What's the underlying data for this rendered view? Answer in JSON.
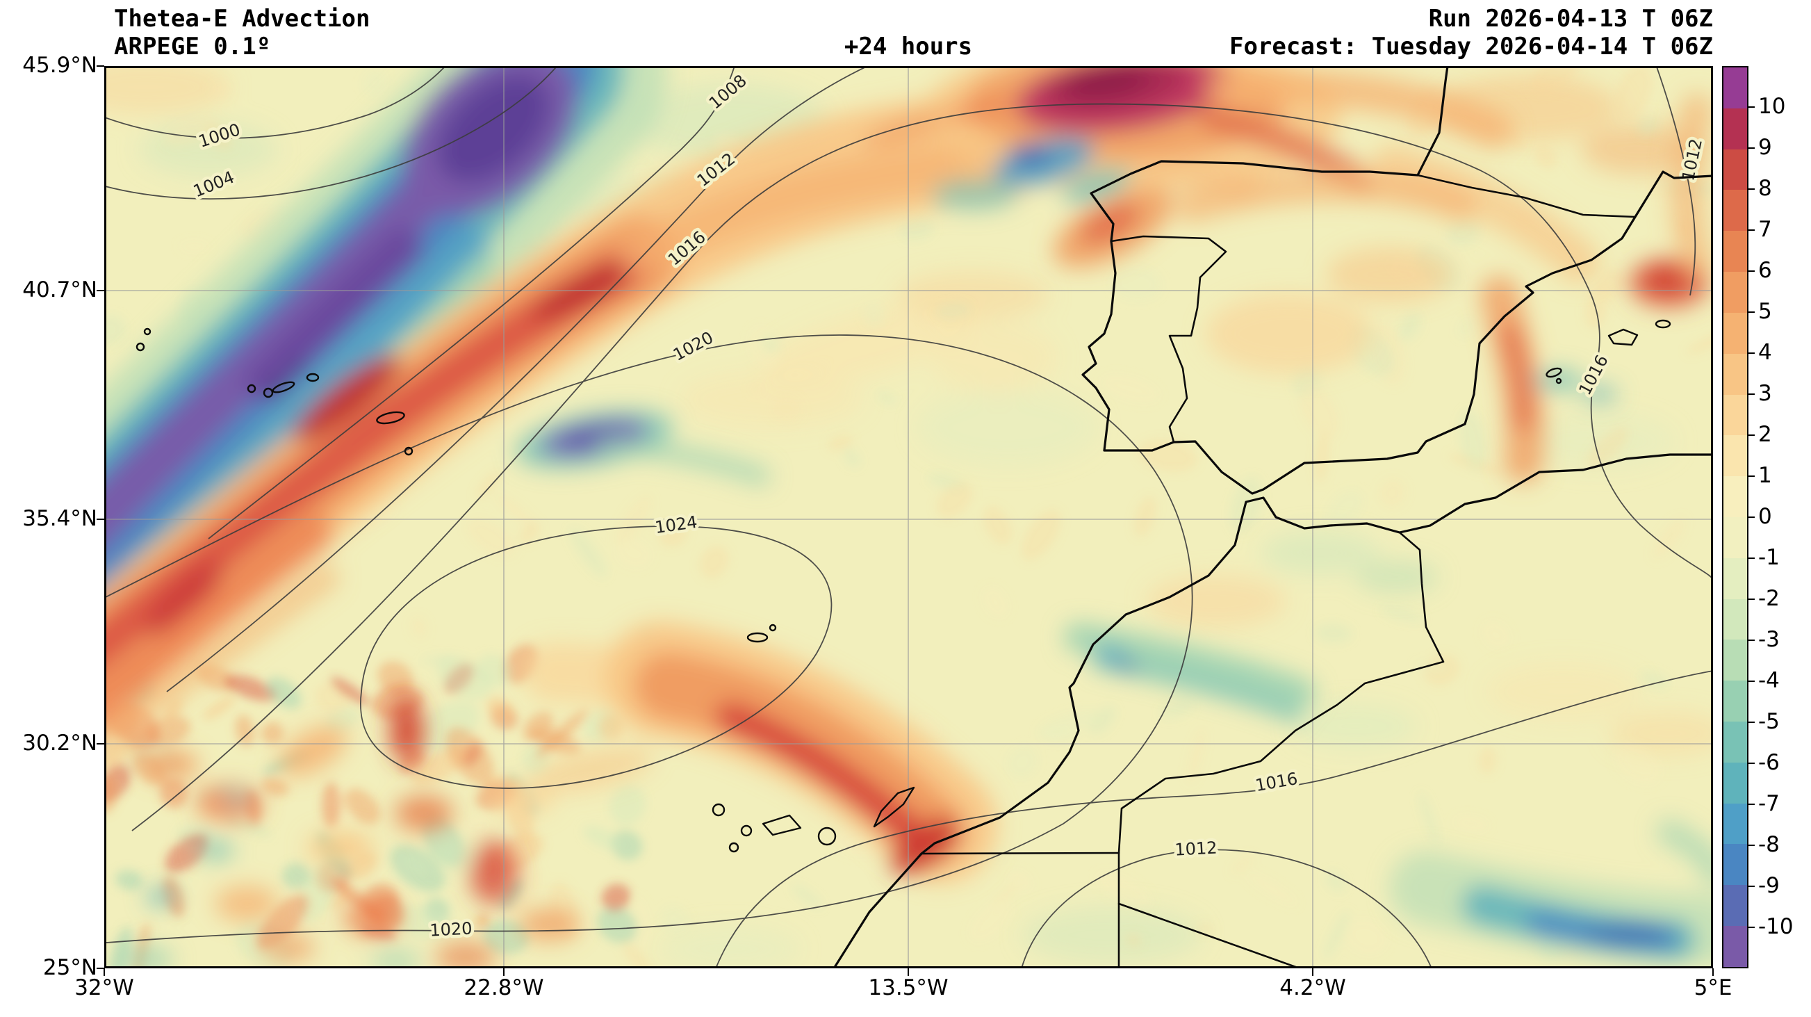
{
  "header": {
    "title": "Thetea-E Advection",
    "model": "ARPEGE 0.1º",
    "lead": "+24 hours",
    "run": "Run 2026-04-13 T 06Z",
    "forecast": "Forecast: Tuesday 2026-04-14 T 06Z"
  },
  "axes": {
    "lat_ticks": [
      "45.9°N",
      "40.7°N",
      "35.4°N",
      "30.2°N",
      "25°N"
    ],
    "lon_ticks": [
      "32°W",
      "22.8°W",
      "13.5°W",
      "4.2°W",
      "5°E"
    ]
  },
  "colorbar": {
    "tick_labels": [
      "10",
      "9",
      "8",
      "7",
      "6",
      "5",
      "4",
      "3",
      "2",
      "1",
      "0",
      "-1",
      "-2",
      "-3",
      "-4",
      "-5",
      "-6",
      "-7",
      "-8",
      "-9",
      "-10"
    ],
    "colors": [
      "#963c94",
      "#b43152",
      "#cc4c44",
      "#dd6a4a",
      "#e88553",
      "#f09d62",
      "#f5b272",
      "#f8c585",
      "#fad69a",
      "#fae5ae",
      "#f8efbe",
      "#f2f0c0",
      "#e4eec0",
      "#d2e8bc",
      "#b8ddb5",
      "#98d0b2",
      "#79c2b5",
      "#5fb3bb",
      "#4f9fc7",
      "#4a86c2",
      "#5a6cb4",
      "#7a5aa8"
    ]
  },
  "isobars": {
    "labels": [
      "1000",
      "1004",
      "1008",
      "1012",
      "1016",
      "1020",
      "1024",
      "1020",
      "1016",
      "1016",
      "1012",
      "1012"
    ]
  },
  "chart_data": {
    "type": "heatmap",
    "subtype": "filled-contour weather map with overlaid isobars and coastlines",
    "title": "Thetea-E Advection",
    "model": "ARPEGE 0.1º",
    "run": "2026-04-13 T 06Z",
    "forecast_valid": "Tuesday 2026-04-14 T 06Z",
    "lead": "+24 hours",
    "extent": {
      "lon_min_deg": -32,
      "lon_max_deg": 5,
      "lat_min_deg": 25,
      "lat_max_deg": 45.9
    },
    "x_tick_labels": [
      "32°W",
      "22.8°W",
      "13.5°W",
      "4.2°W",
      "5°E"
    ],
    "y_tick_labels": [
      "25°N",
      "30.2°N",
      "35.4°N",
      "40.7°N",
      "45.9°N"
    ],
    "grid_lons_deg": [
      -22.8,
      -13.5,
      -4.2
    ],
    "grid_lats_deg": [
      30.2,
      35.4,
      40.7
    ],
    "colorbar_ticks": [
      10,
      9,
      8,
      7,
      6,
      5,
      4,
      3,
      2,
      1,
      0,
      -1,
      -2,
      -3,
      -4,
      -5,
      -6,
      -7,
      -8,
      -9,
      -10
    ],
    "colorbar_orientation": "vertical, right side, warm colors (red/purple) positive at top, cool colors (blue/purple) negative at bottom",
    "isobar_values_hpa": [
      1000,
      1004,
      1008,
      1012,
      1016,
      1020,
      1024
    ],
    "pressure_pattern": {
      "low_northwest": "isobars 1000-1012 hPa packed SW-NE across the upper-left (North Atlantic low)",
      "high_center": "closed 1024 hPa ridge over the central Atlantic near 20W 32N",
      "low_southeast": "1016 and 1012 hPa contours over southern Morocco / Algeria",
      "northeast": "1012 hPa contour near the right (eastern) edge over the Mediterranean / France"
    },
    "features": [
      {
        "name": "strong negative advection band",
        "value_range": "-6 to below -10",
        "desc": "wide SW-NE blue/purple band from about 32W 35N up to 24W 46N"
      },
      {
        "name": "strong positive advection band",
        "value_range": "+3 to +9",
        "desc": "parallel orange/red band immediately southeast of the cold band, 32W 32N to 18W 43N, with dark red cores"
      },
      {
        "name": "intense positive maximum",
        "value_range": "above +10",
        "desc": "magenta blob clipped by the northern edge near 9W 45.8N"
      },
      {
        "name": "positive band north of the Canary Islands",
        "value_range": "+3 to +6",
        "desc": "orange arc from about 19W 31.5N down to 13W 27.5N"
      },
      {
        "name": "small negative pocket mid-Atlantic",
        "value_range": "-6 to -9",
        "desc": "compact blue/purple spot near 20.5W 37.3N"
      },
      {
        "name": "negative streak bottom right",
        "value_range": "-4 to -8",
        "desc": "teal/blue elongated band near 1W-3E 25.3-26.5N"
      },
      {
        "name": "negative streaks along Moroccan coast",
        "value_range": "-2 to -7",
        "desc": "thin green/teal filaments from 9W 32.7N toward 4.5W 31.4N"
      },
      {
        "name": "positive patches around Iberia",
        "value_range": "+2 to +6",
        "desc": "orange areas over Galicia, Bay of Biscay, southern France and the Spanish Mediterranean coast"
      },
      {
        "name": "weak background",
        "value_range": "-1 to +1",
        "desc": "pale yellow over most of the interior Atlantic, Iberia and northwest Africa, speckled with weak cells"
      }
    ]
  }
}
